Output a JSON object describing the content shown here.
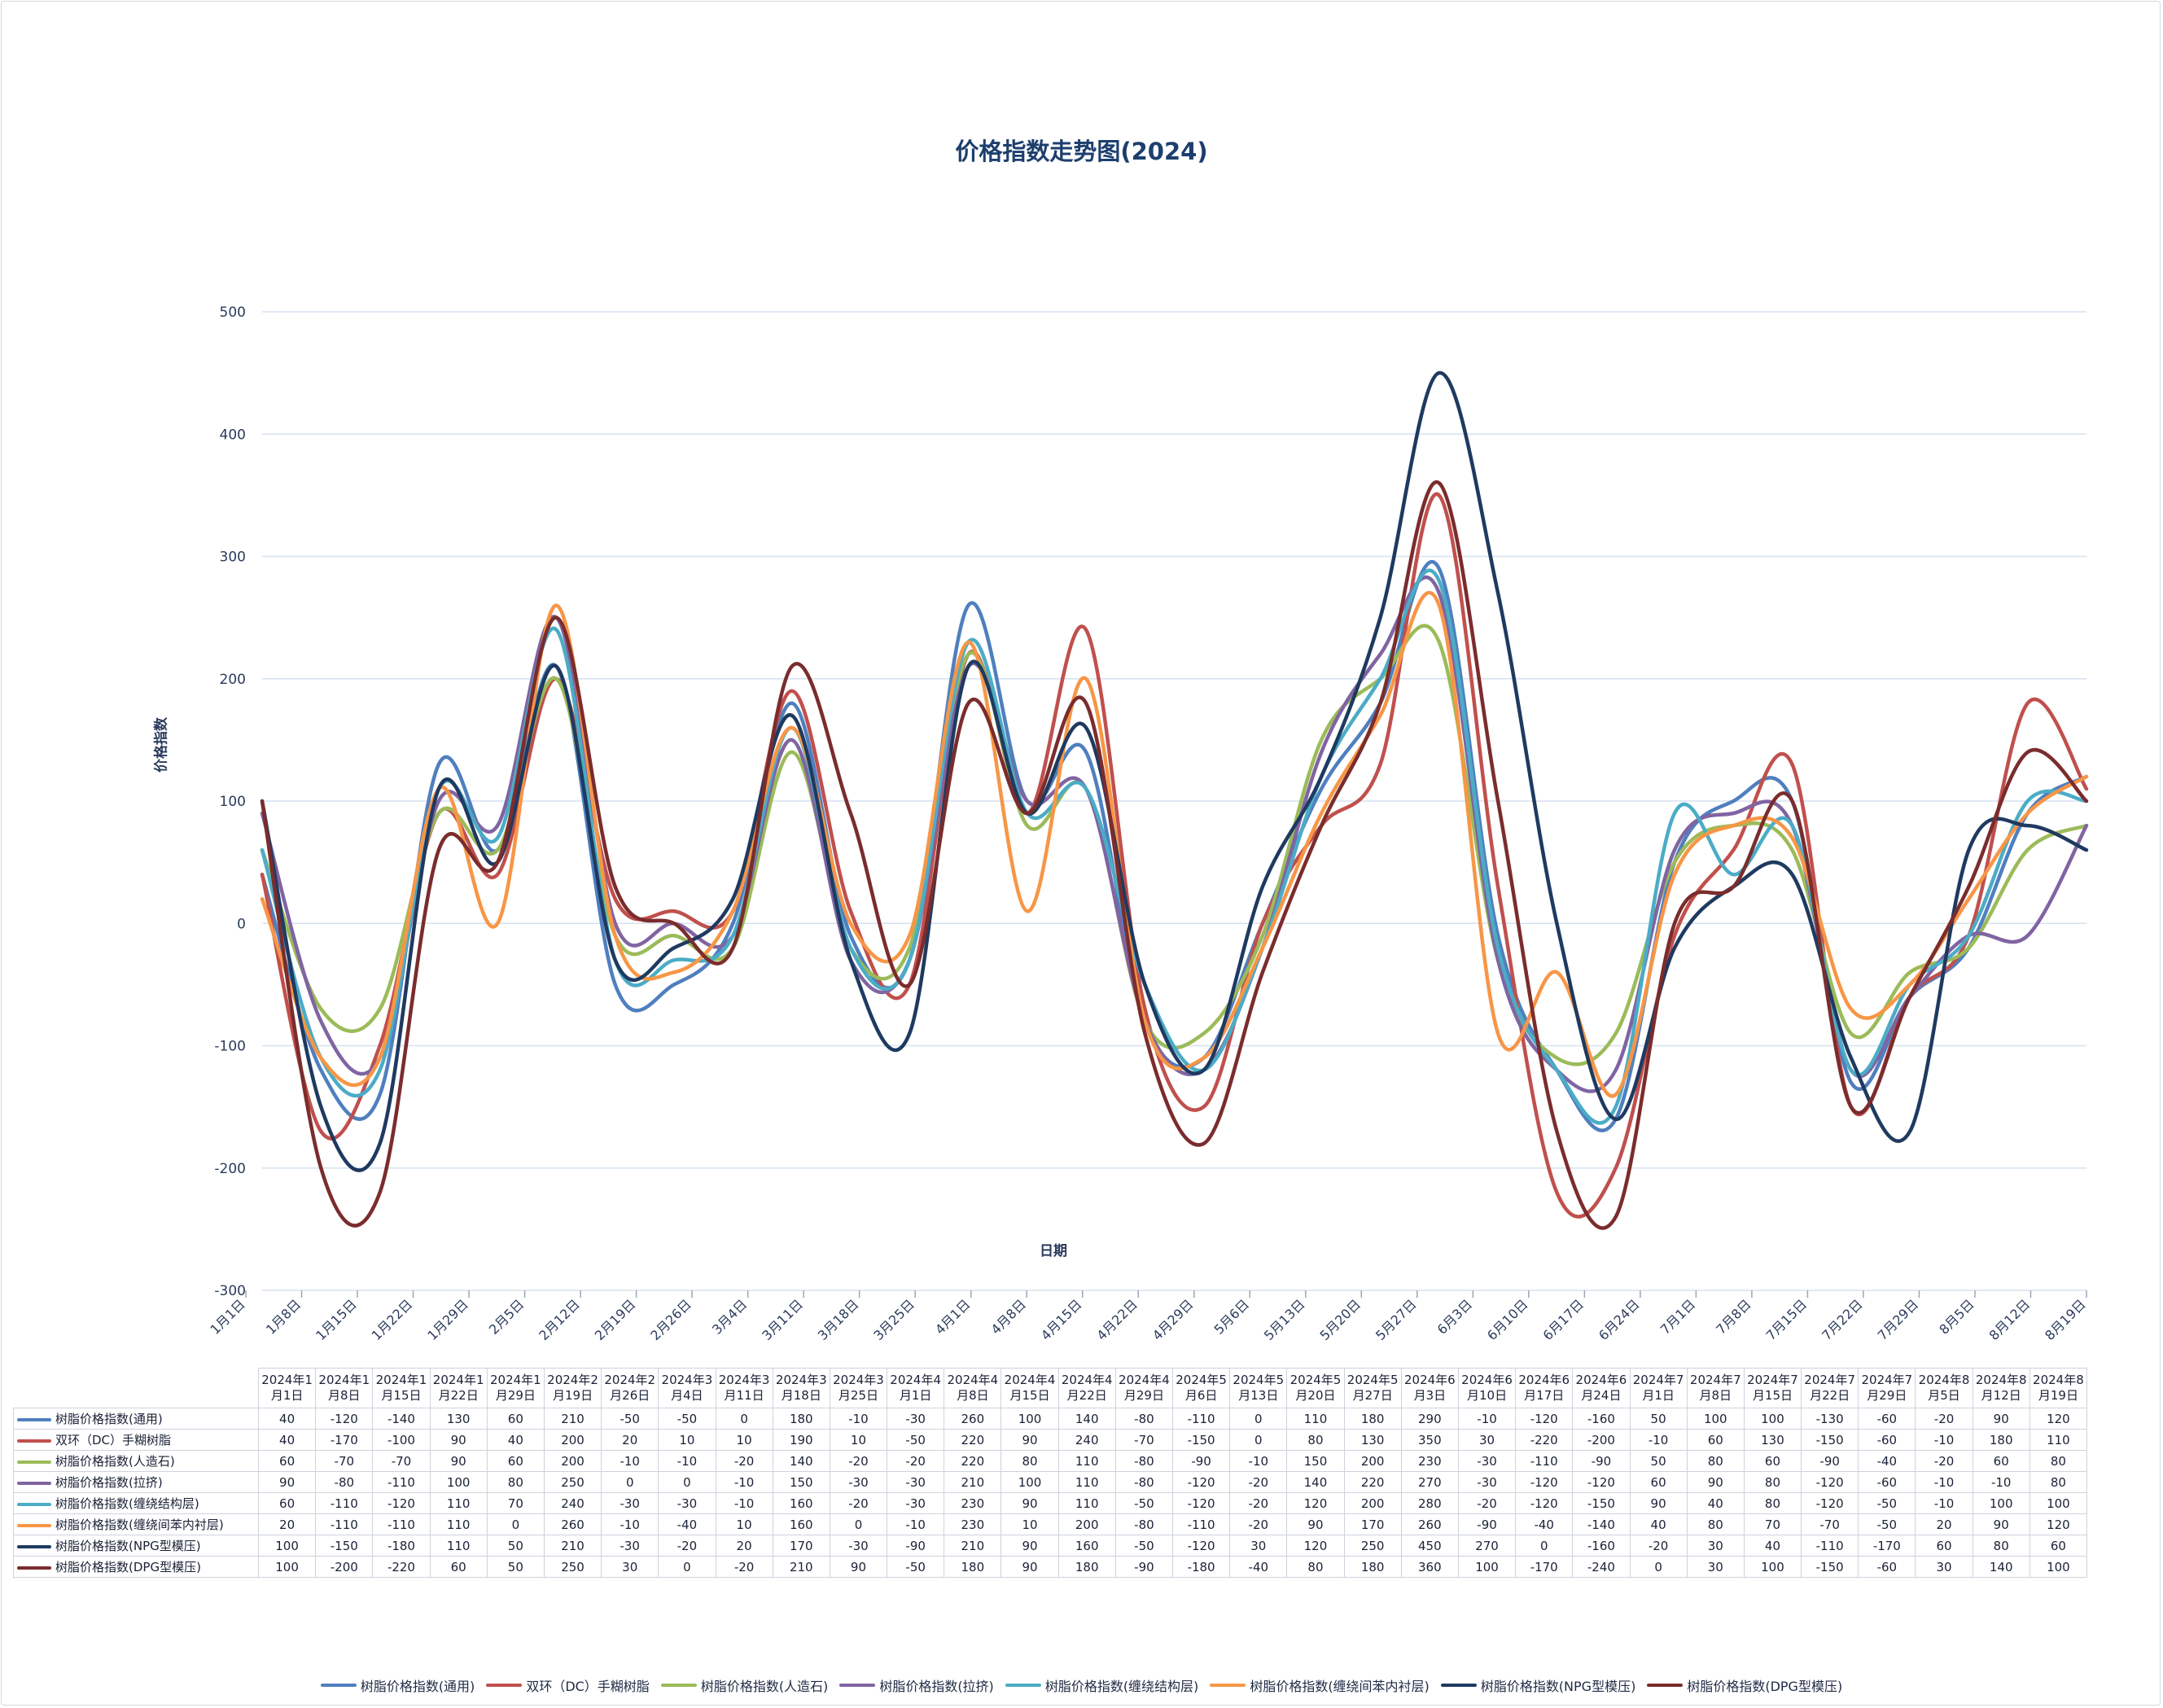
{
  "chart_data": {
    "type": "line",
    "title": "价格指数走势图(2024)",
    "xlabel": "日期",
    "ylabel": "价格指数",
    "ylim": [
      -300,
      500
    ],
    "yticks": [
      500,
      400,
      300,
      200,
      100,
      0,
      -100,
      -200,
      -300
    ],
    "grid": true,
    "legend_position": "bottom",
    "x_ticks": [
      "1月1日",
      "1月8日",
      "1月15日",
      "1月22日",
      "1月29日",
      "2月5日",
      "2月12日",
      "2月19日",
      "2月26日",
      "3月4日",
      "3月11日",
      "3月18日",
      "3月25日",
      "4月1日",
      "4月8日",
      "4月15日",
      "4月22日",
      "4月29日",
      "5月6日",
      "5月13日",
      "5月20日",
      "5月27日",
      "6月3日",
      "6月10日",
      "6月17日",
      "6月24日",
      "7月1日",
      "7月8日",
      "7月15日",
      "7月22日",
      "7月29日",
      "8月5日",
      "8月12日",
      "8月19日"
    ],
    "categories": [
      "2024年1月1日",
      "2024年1月8日",
      "2024年1月15日",
      "2024年1月22日",
      "2024年1月29日",
      "2024年2月19日",
      "2024年2月26日",
      "2024年3月4日",
      "2024年3月11日",
      "2024年3月18日",
      "2024年3月25日",
      "2024年4月1日",
      "2024年4月8日",
      "2024年4月15日",
      "2024年4月22日",
      "2024年4月29日",
      "2024年5月6日",
      "2024年5月13日",
      "2024年5月20日",
      "2024年5月27日",
      "2024年6月3日",
      "2024年6月10日",
      "2024年6月17日",
      "2024年6月24日",
      "2024年7月1日",
      "2024年7月8日",
      "2024年7月15日",
      "2024年7月22日",
      "2024年7月29日",
      "2024年8月5日",
      "2024年8月12日",
      "2024年8月19日"
    ],
    "series": [
      {
        "name": "树脂价格指数(通用)",
        "color": "#4f7fbf",
        "values": [
          40,
          -120,
          -140,
          130,
          60,
          210,
          -50,
          -50,
          0,
          180,
          -10,
          -30,
          260,
          100,
          140,
          -80,
          -110,
          0,
          110,
          180,
          290,
          -10,
          -120,
          -160,
          50,
          100,
          100,
          -130,
          -60,
          -20,
          90,
          120
        ]
      },
      {
        "name": "双环（DC）手糊树脂",
        "color": "#c0504d",
        "values": [
          40,
          -170,
          -100,
          90,
          40,
          200,
          20,
          10,
          10,
          190,
          10,
          -50,
          220,
          90,
          240,
          -70,
          -150,
          0,
          80,
          130,
          350,
          30,
          -220,
          -200,
          -10,
          60,
          130,
          -150,
          -60,
          -10,
          180,
          110
        ]
      },
      {
        "name": "树脂价格指数(人造石)",
        "color": "#9bbb59",
        "values": [
          60,
          -70,
          -70,
          90,
          60,
          200,
          -10,
          -10,
          -20,
          140,
          -20,
          -20,
          220,
          80,
          110,
          -80,
          -90,
          -10,
          150,
          200,
          230,
          -30,
          -110,
          -90,
          50,
          80,
          60,
          -90,
          -40,
          -20,
          60,
          80
        ]
      },
      {
        "name": "树脂价格指数(拉挤)",
        "color": "#8064a2",
        "values": [
          90,
          -80,
          -110,
          100,
          80,
          250,
          0,
          0,
          -10,
          150,
          -30,
          -30,
          210,
          100,
          110,
          -80,
          -120,
          -20,
          140,
          220,
          270,
          -30,
          -120,
          -120,
          60,
          90,
          80,
          -120,
          -60,
          -10,
          -10,
          80
        ]
      },
      {
        "name": "树脂价格指数(缠绕结构层)",
        "color": "#4bacc6",
        "values": [
          60,
          -110,
          -120,
          110,
          70,
          240,
          -30,
          -30,
          -10,
          160,
          -20,
          -30,
          230,
          90,
          110,
          -50,
          -120,
          -20,
          120,
          200,
          280,
          -20,
          -120,
          -150,
          90,
          40,
          80,
          -120,
          -50,
          -10,
          100,
          100
        ]
      },
      {
        "name": "树脂价格指数(缠绕间苯内衬层)",
        "color": "#f79646",
        "values": [
          20,
          -110,
          -110,
          110,
          0,
          260,
          -10,
          -40,
          10,
          160,
          0,
          -10,
          230,
          10,
          200,
          -80,
          -110,
          -20,
          90,
          170,
          260,
          -90,
          -40,
          -140,
          40,
          80,
          70,
          -70,
          -50,
          20,
          90,
          120
        ]
      },
      {
        "name": "树脂价格指数(NPG型模压)",
        "color": "#1f3a60",
        "values": [
          100,
          -150,
          -180,
          110,
          50,
          210,
          -30,
          -20,
          20,
          170,
          -30,
          -90,
          210,
          90,
          160,
          -50,
          -120,
          30,
          120,
          250,
          450,
          270,
          0,
          -160,
          -20,
          30,
          40,
          -110,
          -170,
          60,
          80,
          60
        ]
      },
      {
        "name": "树脂价格指数(DPG型模压)",
        "color": "#7b2c2c",
        "values": [
          100,
          -200,
          -220,
          60,
          50,
          250,
          30,
          0,
          -20,
          210,
          90,
          -50,
          180,
          90,
          180,
          -90,
          -180,
          -40,
          80,
          180,
          360,
          100,
          -170,
          -240,
          0,
          30,
          100,
          -150,
          -60,
          30,
          140,
          100
        ]
      }
    ]
  }
}
